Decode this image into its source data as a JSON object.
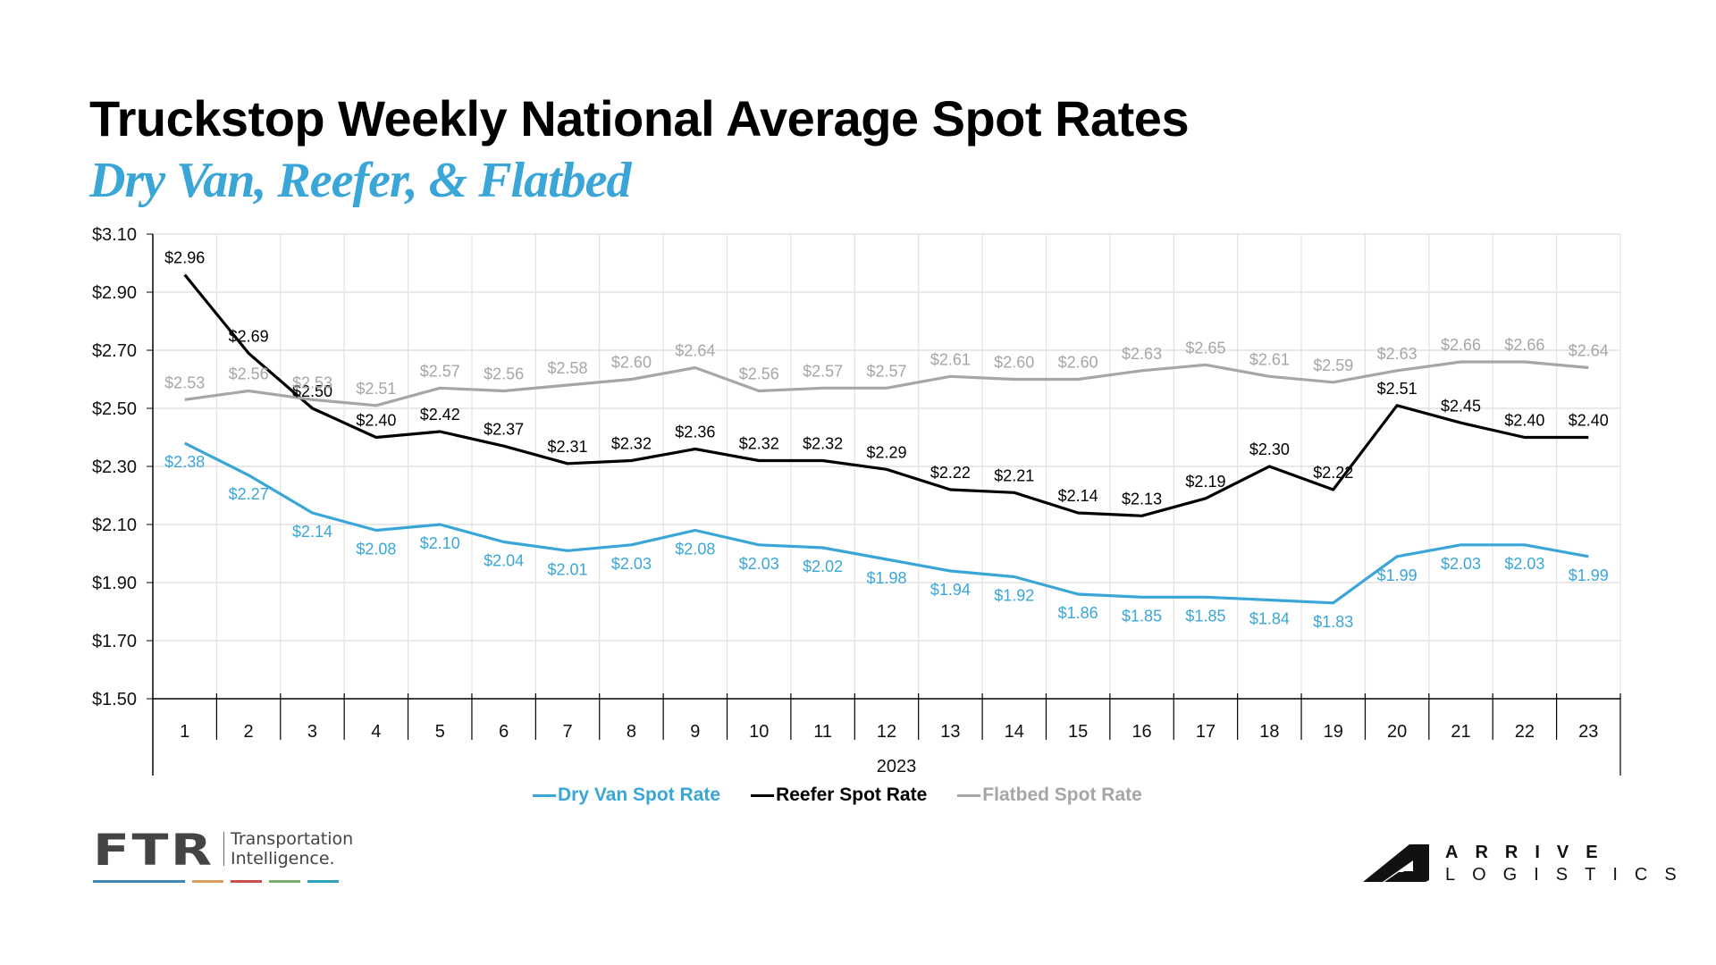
{
  "header": {
    "title": "Truckstop Weekly National Average Spot Rates",
    "subtitle": "Dry Van, Reefer, & Flatbed"
  },
  "chart_data": {
    "type": "line",
    "title": "Truckstop Weekly National Average Spot Rates",
    "subtitle": "Dry Van, Reefer, & Flatbed",
    "xlabel": "2023",
    "ylabel": "",
    "categories": [
      "1",
      "2",
      "3",
      "4",
      "5",
      "6",
      "7",
      "8",
      "9",
      "10",
      "11",
      "12",
      "13",
      "14",
      "15",
      "16",
      "17",
      "18",
      "19",
      "20",
      "21",
      "22",
      "23"
    ],
    "ylim": [
      1.5,
      3.1
    ],
    "yticks": [
      1.5,
      1.7,
      1.9,
      2.1,
      2.3,
      2.5,
      2.7,
      2.9,
      3.1
    ],
    "ytick_labels": [
      "$1.50",
      "$1.70",
      "$1.90",
      "$2.10",
      "$2.30",
      "$2.50",
      "$2.70",
      "$2.90",
      "$3.10"
    ],
    "grid": true,
    "legend_position": "bottom",
    "series": [
      {
        "name": "Dry Van Spot Rate",
        "color": "#3aa6d8",
        "values": [
          2.38,
          2.27,
          2.14,
          2.08,
          2.1,
          2.04,
          2.01,
          2.03,
          2.08,
          2.03,
          2.02,
          1.98,
          1.94,
          1.92,
          1.86,
          1.85,
          1.85,
          1.84,
          1.83,
          1.99,
          2.03,
          2.03,
          1.99
        ],
        "label_position": "below"
      },
      {
        "name": "Reefer Spot Rate",
        "color": "#000000",
        "values": [
          2.96,
          2.69,
          2.5,
          2.4,
          2.42,
          2.37,
          2.31,
          2.32,
          2.36,
          2.32,
          2.32,
          2.29,
          2.22,
          2.21,
          2.14,
          2.13,
          2.19,
          2.3,
          2.22,
          2.51,
          2.45,
          2.4,
          2.4
        ],
        "label_position": "above"
      },
      {
        "name": "Flatbed Spot Rate",
        "color": "#a6a6a6",
        "values": [
          2.53,
          2.56,
          2.53,
          2.51,
          2.57,
          2.56,
          2.58,
          2.6,
          2.64,
          2.56,
          2.57,
          2.57,
          2.61,
          2.6,
          2.6,
          2.63,
          2.65,
          2.61,
          2.59,
          2.63,
          2.66,
          2.66,
          2.64
        ],
        "label_position": "above"
      }
    ],
    "value_prefix": "$"
  },
  "legend": [
    {
      "label": "Dry Van Spot Rate",
      "color": "#3aa6d8"
    },
    {
      "label": "Reefer Spot Rate",
      "color": "#000000"
    },
    {
      "label": "Flatbed Spot Rate",
      "color": "#a6a6a6"
    }
  ],
  "logos": {
    "ftr": {
      "mark": "FTR",
      "line1": "Transportation",
      "line2": "Intelligence.",
      "bar_colors": [
        "#3d8ab8",
        "#d9a05b",
        "#c8504a",
        "#7aad6a",
        "#2fa3c2"
      ]
    },
    "arrive": {
      "line1": "ARRIVE",
      "line2": "LOGISTICS"
    }
  }
}
